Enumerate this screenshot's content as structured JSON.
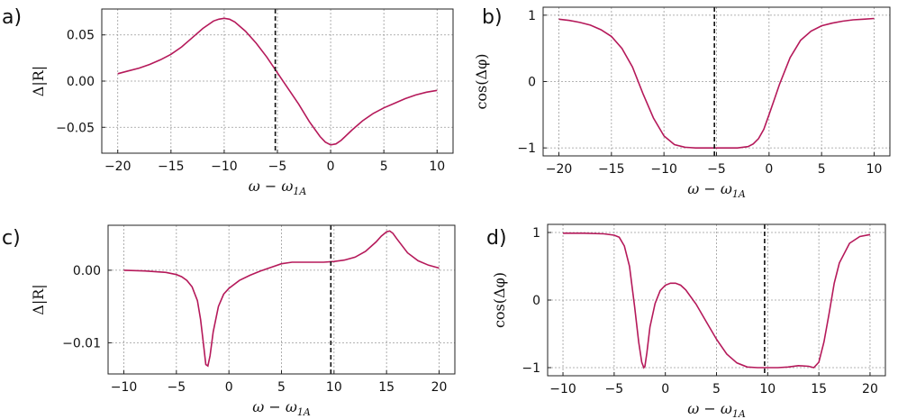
{
  "chart_data": [
    {
      "type": "line",
      "panel_label": "a)",
      "xlabel": "ω − ω1A",
      "xlabel_main": "ω − ω",
      "xlabel_sub": "1A",
      "ylabel": "Δ|R|",
      "xlim": [
        -21.5,
        11.5
      ],
      "ylim": [
        -0.078,
        0.078
      ],
      "xticks": [
        -20,
        -15,
        -10,
        -5,
        0,
        5,
        10
      ],
      "xtick_labels": [
        "−20",
        "−15",
        "−10",
        "−5",
        "0",
        "5",
        "10"
      ],
      "yticks": [
        -0.05,
        0.0,
        0.05
      ],
      "ytick_labels": [
        "−0.05",
        "0.00",
        "0.05"
      ],
      "grid": true,
      "vline_x": -5.2,
      "series": [
        {
          "color": "#b5195a",
          "x": [
            -20,
            -19,
            -18,
            -17,
            -16,
            -15,
            -14,
            -13,
            -12,
            -11,
            -10.5,
            -10,
            -9.5,
            -9,
            -8,
            -7,
            -6,
            -5,
            -4,
            -3,
            -2,
            -1,
            -0.5,
            0,
            0.5,
            1,
            2,
            3,
            4,
            5,
            6,
            7,
            8,
            9,
            10
          ],
          "y": [
            0.008,
            0.011,
            0.014,
            0.018,
            0.023,
            0.029,
            0.037,
            0.047,
            0.057,
            0.065,
            0.067,
            0.068,
            0.067,
            0.064,
            0.054,
            0.041,
            0.026,
            0.009,
            -0.008,
            -0.025,
            -0.044,
            -0.06,
            -0.066,
            -0.069,
            -0.068,
            -0.064,
            -0.053,
            -0.043,
            -0.035,
            -0.029,
            -0.024,
            -0.019,
            -0.015,
            -0.012,
            -0.01
          ]
        }
      ]
    },
    {
      "type": "line",
      "panel_label": "b)",
      "xlabel": "ω − ω1A",
      "xlabel_main": "ω − ω",
      "xlabel_sub": "1A",
      "ylabel": "cos(Δφ)",
      "xlim": [
        -21.5,
        11.5
      ],
      "ylim": [
        -1.12,
        1.12
      ],
      "xticks": [
        -20,
        -15,
        -10,
        -5,
        0,
        5,
        10
      ],
      "xtick_labels": [
        "−20",
        "−15",
        "−10",
        "−5",
        "0",
        "5",
        "10"
      ],
      "yticks": [
        -1,
        0,
        1
      ],
      "ytick_labels": [
        "−1",
        "0",
        "1"
      ],
      "grid": true,
      "vline_x": -5.2,
      "series": [
        {
          "color": "#b5195a",
          "x": [
            -20,
            -19,
            -18,
            -17,
            -16,
            -15,
            -14,
            -13,
            -12,
            -11,
            -10,
            -9,
            -8,
            -7,
            -6,
            -5,
            -4,
            -3,
            -2,
            -1.5,
            -1,
            -0.5,
            0,
            0.5,
            1,
            2,
            3,
            4,
            5,
            6,
            7,
            8,
            9,
            10
          ],
          "y": [
            0.94,
            0.92,
            0.89,
            0.85,
            0.78,
            0.68,
            0.5,
            0.22,
            -0.18,
            -0.55,
            -0.82,
            -0.95,
            -0.99,
            -1.0,
            -1.0,
            -1.0,
            -1.0,
            -1.0,
            -0.98,
            -0.94,
            -0.86,
            -0.72,
            -0.5,
            -0.27,
            -0.04,
            0.36,
            0.62,
            0.76,
            0.84,
            0.88,
            0.91,
            0.93,
            0.94,
            0.95
          ]
        }
      ]
    },
    {
      "type": "line",
      "panel_label": "c)",
      "xlabel": "ω − ω1A",
      "xlabel_main": "ω − ω",
      "xlabel_sub": "1A",
      "ylabel": "Δ|R|",
      "xlim": [
        -11.5,
        21.5
      ],
      "ylim": [
        -0.0143,
        0.0062
      ],
      "xticks": [
        -10,
        -5,
        0,
        5,
        10,
        15,
        20
      ],
      "xtick_labels": [
        "−10",
        "−5",
        "0",
        "5",
        "10",
        "15",
        "20"
      ],
      "yticks": [
        -0.01,
        0.0
      ],
      "ytick_labels": [
        "−0.01",
        "0.00"
      ],
      "grid": true,
      "vline_x": 9.7,
      "series": [
        {
          "color": "#b5195a",
          "x": [
            -10,
            -8,
            -6,
            -5,
            -4.5,
            -4,
            -3.5,
            -3,
            -2.7,
            -2.4,
            -2.2,
            -2.0,
            -1.8,
            -1.5,
            -1,
            -0.5,
            0,
            1,
            2,
            3,
            4,
            5,
            6,
            7,
            8,
            9,
            10,
            11,
            12,
            13,
            14,
            14.5,
            15,
            15.3,
            15.6,
            16,
            17,
            18,
            19,
            20
          ],
          "y": [
            0.0,
            -0.0001,
            -0.0003,
            -0.0006,
            -0.0009,
            -0.0014,
            -0.0023,
            -0.0042,
            -0.0068,
            -0.0105,
            -0.013,
            -0.0132,
            -0.0118,
            -0.0085,
            -0.005,
            -0.0033,
            -0.0025,
            -0.0014,
            -0.0007,
            -0.0001,
            0.0004,
            0.0009,
            0.0011,
            0.0011,
            0.0011,
            0.0011,
            0.0012,
            0.0014,
            0.0018,
            0.0026,
            0.0039,
            0.0047,
            0.0053,
            0.0054,
            0.0051,
            0.0043,
            0.0024,
            0.0013,
            0.0007,
            0.0003
          ]
        }
      ]
    },
    {
      "type": "line",
      "panel_label": "d)",
      "xlabel": "ω − ω1A",
      "xlabel_main": "ω − ω",
      "xlabel_sub": "1A",
      "ylabel": "cos(Δφ)",
      "xlim": [
        -11.5,
        21.5
      ],
      "ylim": [
        -1.12,
        1.12
      ],
      "xticks": [
        -10,
        -5,
        0,
        5,
        10,
        15,
        20
      ],
      "xtick_labels": [
        "−10",
        "−5",
        "0",
        "5",
        "10",
        "15",
        "20"
      ],
      "yticks": [
        -1,
        0,
        1
      ],
      "ytick_labels": [
        "−1",
        "0",
        "1"
      ],
      "grid": true,
      "vline_x": 9.7,
      "series": [
        {
          "color": "#b5195a",
          "x": [
            -10,
            -8,
            -6,
            -5,
            -4.5,
            -4,
            -3.5,
            -3,
            -2.6,
            -2.3,
            -2.1,
            -2.0,
            -1.8,
            -1.5,
            -1,
            -0.5,
            0,
            0.5,
            1,
            1.5,
            2,
            3,
            4,
            5,
            6,
            7,
            8,
            9,
            10,
            11,
            12,
            13,
            14,
            14.5,
            15,
            15.5,
            16,
            16.5,
            17,
            18,
            19,
            20
          ],
          "y": [
            0.99,
            0.99,
            0.98,
            0.96,
            0.93,
            0.8,
            0.5,
            -0.1,
            -0.62,
            -0.92,
            -1.0,
            -0.98,
            -0.78,
            -0.4,
            -0.05,
            0.14,
            0.22,
            0.25,
            0.25,
            0.22,
            0.15,
            -0.06,
            -0.32,
            -0.58,
            -0.8,
            -0.93,
            -0.99,
            -1.0,
            -1.0,
            -1.0,
            -0.99,
            -0.97,
            -0.98,
            -1.0,
            -0.92,
            -0.62,
            -0.2,
            0.25,
            0.55,
            0.84,
            0.94,
            0.97
          ]
        }
      ]
    }
  ]
}
